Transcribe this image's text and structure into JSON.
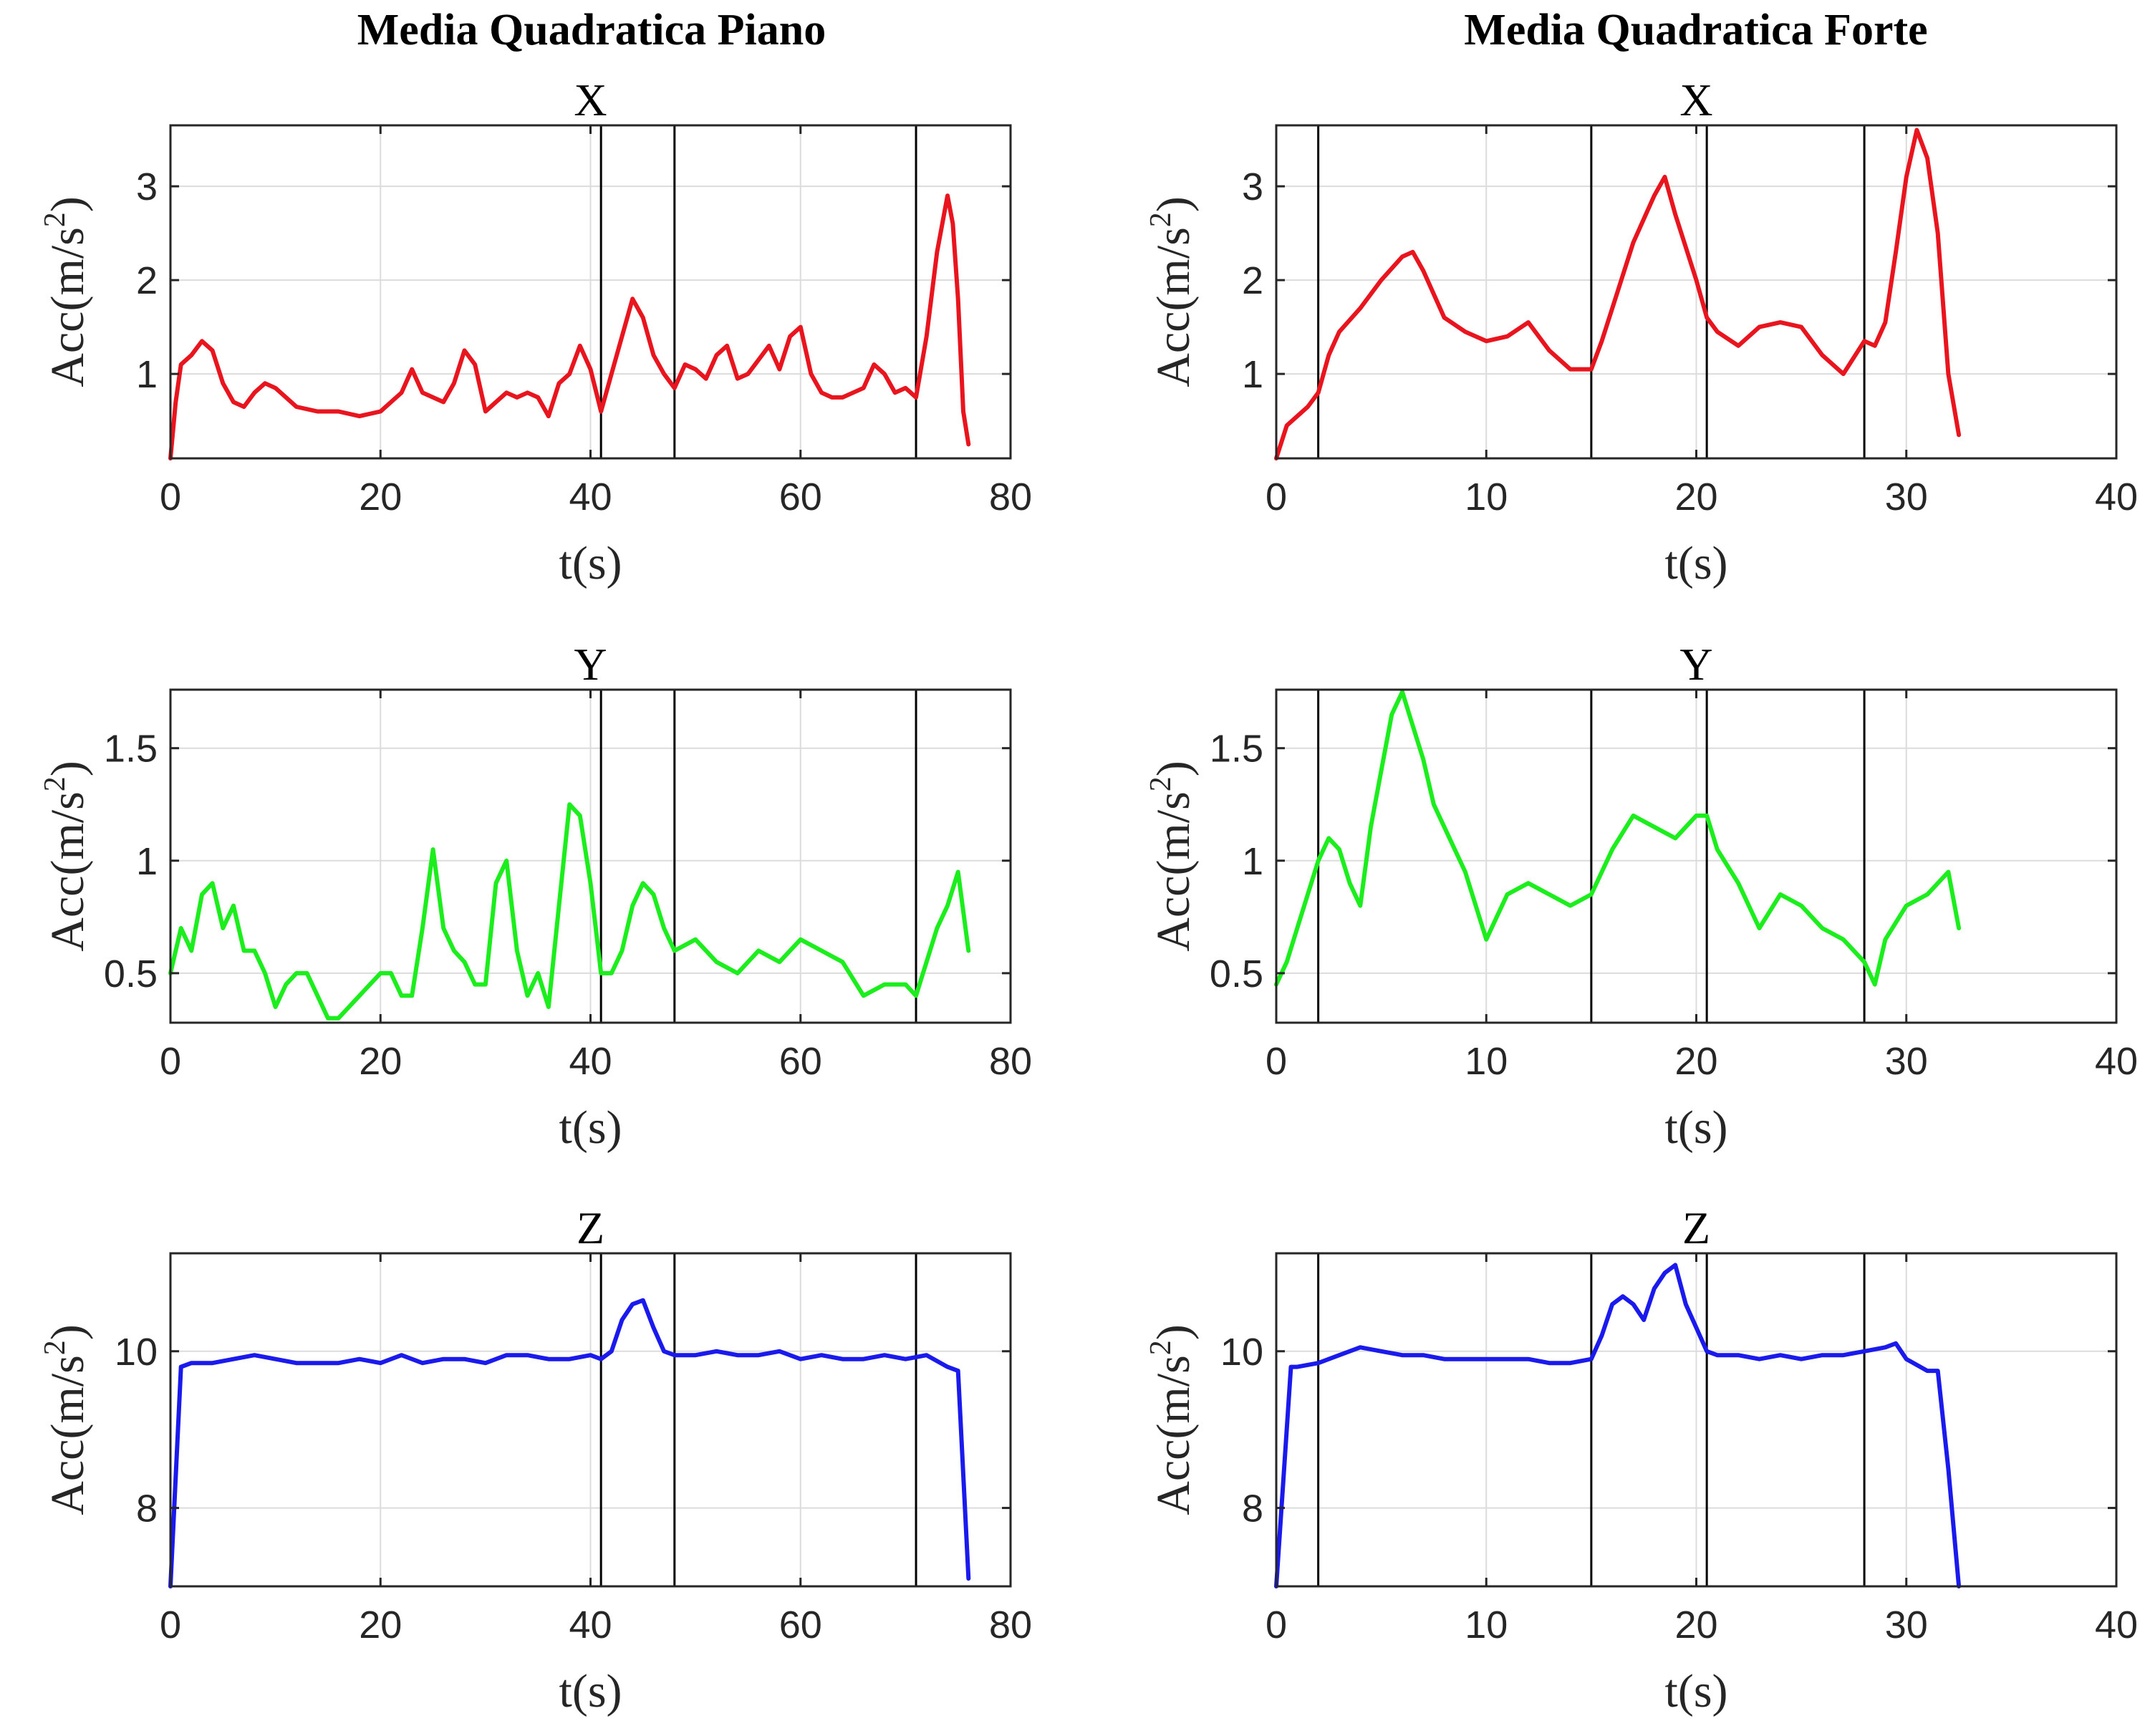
{
  "chart_data": [
    {
      "type": "line",
      "group_title": "Media Quadratica Piano",
      "title": "X",
      "xlabel": "t(s)",
      "ylabel": "Acc(m/s2)",
      "xlim": [
        0,
        80
      ],
      "ylim": [
        0.1,
        3.65
      ],
      "xticks": [
        0,
        20,
        40,
        60,
        80
      ],
      "yticks": [
        1,
        2,
        3
      ],
      "grid": true,
      "vlines": [
        41,
        48,
        71
      ],
      "series": [
        {
          "color": "#e8141e",
          "x": [
            0,
            0.5,
            1,
            2,
            3,
            4,
            5,
            6,
            7,
            8,
            9,
            10,
            11,
            12,
            14,
            16,
            18,
            20,
            22,
            23,
            24,
            26,
            27,
            28,
            29,
            30,
            31,
            32,
            33,
            34,
            35,
            36,
            37,
            38,
            39,
            40,
            41,
            42,
            43,
            44,
            45,
            46,
            47,
            48,
            49,
            50,
            51,
            52,
            53,
            54,
            55,
            56,
            57,
            58,
            59,
            60,
            61,
            62,
            63,
            64,
            65,
            66,
            67,
            68,
            69,
            70,
            71,
            72,
            73,
            74,
            74.5,
            75,
            75.5,
            76
          ],
          "y": [
            0.1,
            0.7,
            1.1,
            1.2,
            1.35,
            1.25,
            0.9,
            0.7,
            0.65,
            0.8,
            0.9,
            0.85,
            0.75,
            0.65,
            0.6,
            0.6,
            0.55,
            0.6,
            0.8,
            1.05,
            0.8,
            0.7,
            0.9,
            1.25,
            1.1,
            0.6,
            0.7,
            0.8,
            0.75,
            0.8,
            0.75,
            0.55,
            0.9,
            1.0,
            1.3,
            1.05,
            0.6,
            1.0,
            1.4,
            1.8,
            1.6,
            1.2,
            1.0,
            0.85,
            1.1,
            1.05,
            0.95,
            1.2,
            1.3,
            0.95,
            1.0,
            1.15,
            1.3,
            1.05,
            1.4,
            1.5,
            1.0,
            0.8,
            0.75,
            0.75,
            0.8,
            0.85,
            1.1,
            1.0,
            0.8,
            0.85,
            0.75,
            1.4,
            2.3,
            2.9,
            2.6,
            1.8,
            0.6,
            0.25
          ]
        }
      ]
    },
    {
      "type": "line",
      "group_title": "Media Quadratica Forte",
      "title": "X",
      "xlabel": "t(s)",
      "ylabel": "Acc(m/s2)",
      "xlim": [
        0,
        40
      ],
      "ylim": [
        0.1,
        3.65
      ],
      "xticks": [
        0,
        10,
        20,
        30,
        40
      ],
      "yticks": [
        1,
        2,
        3
      ],
      "grid": true,
      "vlines": [
        2,
        15,
        20.5,
        28
      ],
      "series": [
        {
          "color": "#e8141e",
          "x": [
            0,
            0.5,
            1,
            1.5,
            2,
            2.5,
            3,
            4,
            5,
            6,
            6.5,
            7,
            8,
            9,
            10,
            11,
            12,
            13,
            14,
            15,
            15.5,
            16,
            17,
            18,
            18.5,
            19,
            20,
            20.5,
            21,
            22,
            23,
            24,
            25,
            26,
            27,
            28,
            28.5,
            29,
            29.5,
            30,
            30.5,
            31,
            31.5,
            32,
            32.5
          ],
          "y": [
            0.1,
            0.45,
            0.55,
            0.65,
            0.8,
            1.2,
            1.45,
            1.7,
            2.0,
            2.25,
            2.3,
            2.1,
            1.6,
            1.45,
            1.35,
            1.4,
            1.55,
            1.25,
            1.05,
            1.05,
            1.35,
            1.7,
            2.4,
            2.9,
            3.1,
            2.7,
            2.0,
            1.6,
            1.45,
            1.3,
            1.5,
            1.55,
            1.5,
            1.2,
            1.0,
            1.35,
            1.3,
            1.55,
            2.3,
            3.1,
            3.6,
            3.3,
            2.5,
            1.0,
            0.35
          ]
        }
      ]
    },
    {
      "type": "line",
      "title": "Y",
      "xlabel": "t(s)",
      "ylabel": "Acc(m/s2)",
      "xlim": [
        0,
        80
      ],
      "ylim": [
        0.28,
        1.76
      ],
      "xticks": [
        0,
        20,
        40,
        60,
        80
      ],
      "yticks": [
        0.5,
        1,
        1.5
      ],
      "grid": true,
      "vlines": [
        41,
        48,
        71
      ],
      "series": [
        {
          "color": "#1ced1c",
          "x": [
            0,
            1,
            2,
            3,
            4,
            5,
            6,
            7,
            8,
            9,
            10,
            11,
            12,
            13,
            14,
            15,
            16,
            17,
            18,
            19,
            20,
            21,
            22,
            23,
            24,
            25,
            26,
            27,
            28,
            29,
            30,
            31,
            32,
            33,
            34,
            35,
            36,
            37,
            38,
            39,
            40,
            41,
            42,
            43,
            44,
            45,
            46,
            47,
            48,
            50,
            52,
            54,
            56,
            58,
            60,
            62,
            64,
            66,
            68,
            70,
            71,
            72,
            73,
            74,
            75,
            76
          ],
          "y": [
            0.5,
            0.7,
            0.6,
            0.85,
            0.9,
            0.7,
            0.8,
            0.6,
            0.6,
            0.5,
            0.35,
            0.45,
            0.5,
            0.5,
            0.4,
            0.3,
            0.3,
            0.35,
            0.4,
            0.45,
            0.5,
            0.5,
            0.4,
            0.4,
            0.7,
            1.05,
            0.7,
            0.6,
            0.55,
            0.45,
            0.45,
            0.9,
            1.0,
            0.6,
            0.4,
            0.5,
            0.35,
            0.8,
            1.25,
            1.2,
            0.9,
            0.5,
            0.5,
            0.6,
            0.8,
            0.9,
            0.85,
            0.7,
            0.6,
            0.65,
            0.55,
            0.5,
            0.6,
            0.55,
            0.65,
            0.6,
            0.55,
            0.4,
            0.45,
            0.45,
            0.4,
            0.55,
            0.7,
            0.8,
            0.95,
            0.6
          ]
        }
      ]
    },
    {
      "type": "line",
      "title": "Y",
      "xlabel": "t(s)",
      "ylabel": "Acc(m/s2)",
      "xlim": [
        0,
        40
      ],
      "ylim": [
        0.28,
        1.76
      ],
      "xticks": [
        0,
        10,
        20,
        30,
        40
      ],
      "yticks": [
        0.5,
        1,
        1.5
      ],
      "grid": true,
      "vlines": [
        2,
        15,
        20.5,
        28
      ],
      "series": [
        {
          "color": "#1ced1c",
          "x": [
            0,
            0.5,
            1,
            1.5,
            2,
            2.5,
            3,
            3.5,
            4,
            4.5,
            5,
            5.5,
            6,
            6.5,
            7,
            7.5,
            8,
            9,
            10,
            10.5,
            11,
            12,
            13,
            14,
            15,
            16,
            17,
            18,
            19,
            20,
            20.5,
            21,
            22,
            23,
            24,
            25,
            26,
            27,
            28,
            28.5,
            29,
            30,
            31,
            32,
            32.5
          ],
          "y": [
            0.45,
            0.55,
            0.7,
            0.85,
            1.0,
            1.1,
            1.05,
            0.9,
            0.8,
            1.15,
            1.4,
            1.65,
            1.75,
            1.6,
            1.45,
            1.25,
            1.15,
            0.95,
            0.65,
            0.75,
            0.85,
            0.9,
            0.85,
            0.8,
            0.85,
            1.05,
            1.2,
            1.15,
            1.1,
            1.2,
            1.2,
            1.05,
            0.9,
            0.7,
            0.85,
            0.8,
            0.7,
            0.65,
            0.55,
            0.45,
            0.65,
            0.8,
            0.85,
            0.95,
            0.7
          ]
        }
      ]
    },
    {
      "type": "line",
      "title": "Z",
      "xlabel": "t(s)",
      "ylabel": "Acc(m/s2)",
      "xlim": [
        0,
        80
      ],
      "ylim": [
        7,
        11.25
      ],
      "xticks": [
        0,
        20,
        40,
        60,
        80
      ],
      "yticks": [
        8,
        10
      ],
      "grid": true,
      "vlines": [
        41,
        48,
        71
      ],
      "series": [
        {
          "color": "#1a1aed",
          "x": [
            0,
            1,
            2,
            4,
            6,
            8,
            10,
            12,
            14,
            16,
            18,
            20,
            22,
            24,
            26,
            28,
            30,
            32,
            34,
            36,
            38,
            40,
            41,
            42,
            43,
            44,
            45,
            46,
            47,
            48,
            50,
            52,
            54,
            56,
            58,
            60,
            62,
            64,
            66,
            68,
            70,
            72,
            74,
            75,
            76
          ],
          "y": [
            7.0,
            9.8,
            9.85,
            9.85,
            9.9,
            9.95,
            9.9,
            9.85,
            9.85,
            9.85,
            9.9,
            9.85,
            9.95,
            9.85,
            9.9,
            9.9,
            9.85,
            9.95,
            9.95,
            9.9,
            9.9,
            9.95,
            9.9,
            10.0,
            10.4,
            10.6,
            10.65,
            10.3,
            10.0,
            9.95,
            9.95,
            10.0,
            9.95,
            9.95,
            10.0,
            9.9,
            9.95,
            9.9,
            9.9,
            9.95,
            9.9,
            9.95,
            9.8,
            9.75,
            7.1
          ]
        }
      ]
    },
    {
      "type": "line",
      "title": "Z",
      "xlabel": "t(s)",
      "ylabel": "Acc(m/s2)",
      "xlim": [
        0,
        40
      ],
      "ylim": [
        7,
        11.25
      ],
      "xticks": [
        0,
        10,
        20,
        30,
        40
      ],
      "yticks": [
        8,
        10
      ],
      "grid": true,
      "vlines": [
        2,
        15,
        20.5,
        28
      ],
      "series": [
        {
          "color": "#1a1aed",
          "x": [
            0,
            0.7,
            1,
            2,
            3,
            4,
            5,
            6,
            7,
            8,
            9,
            10,
            11,
            12,
            13,
            14,
            15,
            15.5,
            16,
            16.5,
            17,
            17.5,
            18,
            18.5,
            19,
            19.5,
            20,
            20.5,
            21,
            22,
            23,
            24,
            25,
            26,
            27,
            28,
            29,
            29.5,
            30,
            31,
            31.5,
            32,
            32.5
          ],
          "y": [
            7.0,
            9.8,
            9.8,
            9.85,
            9.95,
            10.05,
            10.0,
            9.95,
            9.95,
            9.9,
            9.9,
            9.9,
            9.9,
            9.9,
            9.85,
            9.85,
            9.9,
            10.2,
            10.6,
            10.7,
            10.6,
            10.4,
            10.8,
            11.0,
            11.1,
            10.6,
            10.3,
            10.0,
            9.95,
            9.95,
            9.9,
            9.95,
            9.9,
            9.95,
            9.95,
            10.0,
            10.05,
            10.1,
            9.9,
            9.75,
            9.75,
            8.5,
            7.0
          ]
        }
      ]
    }
  ]
}
